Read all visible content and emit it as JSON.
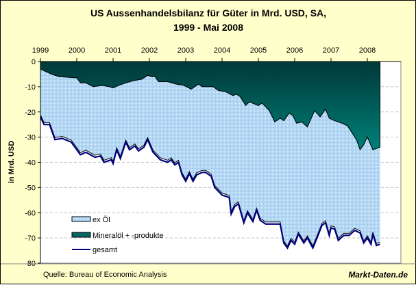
{
  "chart_data": {
    "type": "area",
    "title_line1": "US Aussenhandelsbilanz  für Güter in Mrd. USD, SA,",
    "title_line2": "1999 - Mai 2008",
    "ylabel": "in Mrd. USD",
    "xlabel": "",
    "ylim": [
      -80,
      0
    ],
    "xlim": [
      1999,
      2008.5
    ],
    "x_ticks": [
      "1999",
      "2000",
      "2001",
      "2002",
      "2003",
      "2004",
      "2005",
      "2006",
      "2007",
      "2008"
    ],
    "y_ticks": [
      "0",
      "-10",
      "-20",
      "-30",
      "-40",
      "-50",
      "-60",
      "-70",
      "-80"
    ],
    "grid": "horizontal dashed",
    "legend_position": "bottom-left",
    "legend": [
      "ex Öl",
      "Mineralöl + -produkte",
      "gesamt"
    ],
    "colors": {
      "ex_oel": "#A8D0F0",
      "oil_top": "#003838",
      "oil_bottom": "#008078",
      "gesamt": "#000080"
    },
    "series": [
      {
        "name": "Mineralöl + -produkte (cumulative level)",
        "x": [
          1999.0,
          1999.15,
          1999.3,
          1999.5,
          2000.0,
          2000.1,
          2000.25,
          2000.45,
          2000.7,
          2000.9,
          2001.0,
          2001.15,
          2001.35,
          2001.6,
          2001.8,
          2001.95,
          2002.05,
          2002.15,
          2002.25,
          2002.5,
          2002.75,
          2002.95,
          2003.15,
          2003.35,
          2003.45,
          2003.6,
          2003.75,
          2003.9,
          2004.1,
          2004.3,
          2004.4,
          2004.5,
          2004.65,
          2004.75,
          2005.0,
          2005.1,
          2005.3,
          2005.45,
          2005.6,
          2005.7,
          2005.85,
          2005.95,
          2006.05,
          2006.2,
          2006.35,
          2006.55,
          2006.7,
          2006.85,
          2006.95,
          2007.1,
          2007.3,
          2007.45,
          2007.7,
          2007.8,
          2007.9,
          2008.0,
          2008.15,
          2008.35
        ],
        "values": [
          -3,
          -4,
          -5,
          -6,
          -6.5,
          -8.5,
          -8.5,
          -10,
          -9.5,
          -10,
          -10.5,
          -9.5,
          -8.5,
          -7.5,
          -7,
          -5.5,
          -6,
          -6,
          -8,
          -8,
          -9,
          -9.5,
          -11,
          -9,
          -10,
          -10,
          -10,
          -11.5,
          -12,
          -13.5,
          -13,
          -14,
          -17.5,
          -16,
          -17.5,
          -16.5,
          -19.5,
          -24,
          -22.5,
          -23.5,
          -20.5,
          -21.5,
          -24.5,
          -24,
          -26,
          -19.5,
          -22,
          -19,
          -22.5,
          -23.5,
          -24.5,
          -25.5,
          -31,
          -35,
          -33,
          -30,
          -35,
          -34
        ]
      },
      {
        "name": "gesamt",
        "x": [
          1999.0,
          1999.1,
          1999.25,
          1999.4,
          1999.6,
          1999.85,
          2000.1,
          2000.25,
          2000.5,
          2000.65,
          2000.75,
          2000.95,
          2001.0,
          2001.1,
          2001.2,
          2001.35,
          2001.45,
          2001.6,
          2001.7,
          2001.85,
          2001.95,
          2002.1,
          2002.3,
          2002.5,
          2002.6,
          2002.7,
          2002.8,
          2002.9,
          2003.0,
          2003.1,
          2003.2,
          2003.3,
          2003.45,
          2003.55,
          2003.7,
          2003.8,
          2004.0,
          2004.2,
          2004.25,
          2004.35,
          2004.45,
          2004.6,
          2004.7,
          2004.85,
          2004.95,
          2005.05,
          2005.2,
          2005.6,
          2005.7,
          2005.8,
          2005.9,
          2006.0,
          2006.1,
          2006.25,
          2006.35,
          2006.5,
          2006.6,
          2006.75,
          2006.85,
          2006.95,
          2007.0,
          2007.1,
          2007.2,
          2007.35,
          2007.5,
          2007.65,
          2007.8,
          2007.9,
          2008.0,
          2008.1,
          2008.15,
          2008.25,
          2008.35
        ],
        "values": [
          -22,
          -25,
          -25,
          -31,
          -30.5,
          -32,
          -37,
          -36,
          -38,
          -37.5,
          -40,
          -39,
          -40.5,
          -35,
          -38.5,
          -32,
          -35,
          -33.5,
          -35.5,
          -34,
          -31,
          -36,
          -39,
          -40,
          -39,
          -41,
          -40,
          -45,
          -47.5,
          -44.5,
          -47.5,
          -45,
          -44,
          -44,
          -45.5,
          -50,
          -53,
          -54,
          -60.5,
          -57.5,
          -56.5,
          -64,
          -60,
          -63.5,
          -59,
          -63,
          -64.5,
          -64.5,
          -72,
          -74,
          -71,
          -72.5,
          -68.5,
          -72,
          -70,
          -74,
          -70.5,
          -65,
          -64,
          -69,
          -66,
          -66.5,
          -71,
          -69,
          -69,
          -67,
          -68,
          -72,
          -70,
          -72.5,
          -68.5,
          -73,
          -72.5
        ]
      }
    ]
  },
  "footer": {
    "source": "Quelle: Bureau of Economic Analysis",
    "brand": "Markt-Daten.de"
  }
}
